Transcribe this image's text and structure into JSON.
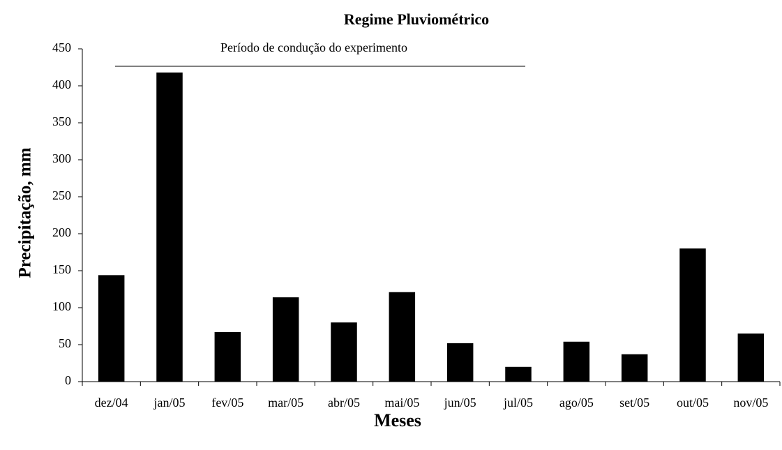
{
  "chart_data": {
    "type": "bar",
    "title": "Regime Pluviométrico",
    "x_label": "Meses",
    "y_label": "Precipitação, mm",
    "annotation": "Período de condução do experimento",
    "categories": [
      "dez/04",
      "jan/05",
      "fev/05",
      "mar/05",
      "abr/05",
      "mai/05",
      "jun/05",
      "jul/05",
      "ago/05",
      "set/05",
      "out/05",
      "nov/05"
    ],
    "values": [
      144,
      418,
      67,
      114,
      80,
      121,
      52,
      20,
      54,
      37,
      180,
      65
    ],
    "color": "#000000",
    "ylim": [
      0,
      450
    ],
    "yticks": [
      0,
      50,
      100,
      150,
      200,
      250,
      300,
      350,
      400,
      450
    ],
    "grid": false
  }
}
